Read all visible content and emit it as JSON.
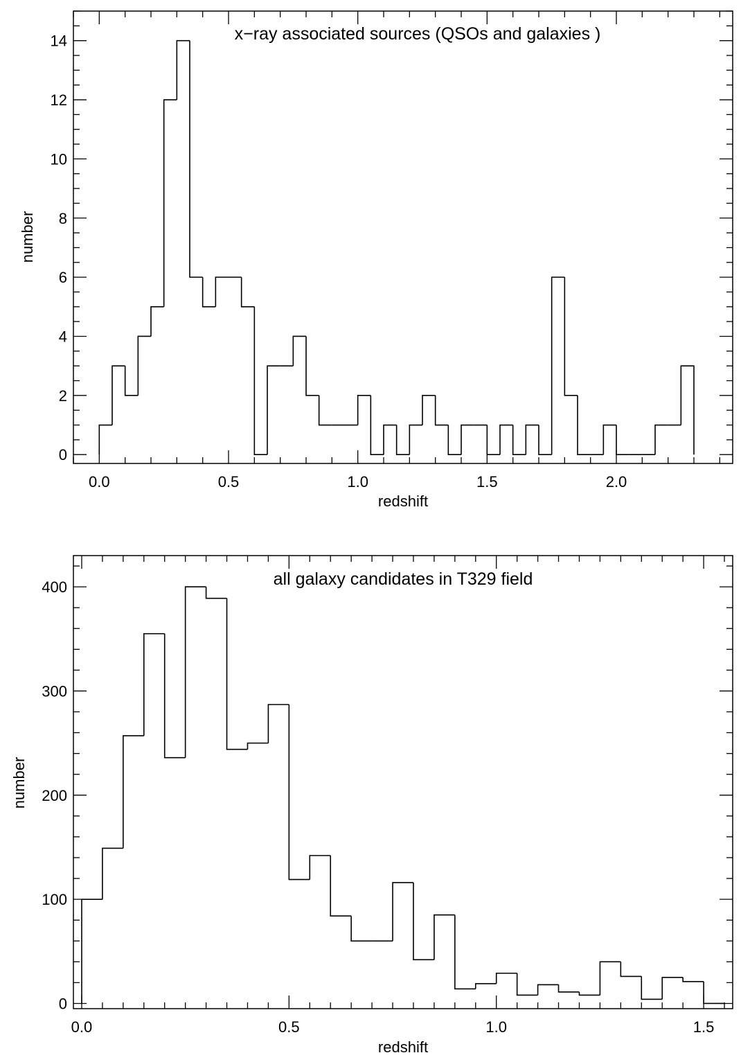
{
  "colors": {
    "ink": "#000000",
    "background": "#ffffff"
  },
  "chart_data": [
    {
      "type": "histogram",
      "title": "x−ray associated sources (QSOs and galaxies )",
      "xlabel": "redshift",
      "ylabel": "number",
      "xlim": [
        -0.1,
        2.45
      ],
      "ylim": [
        -0.3,
        15.0
      ],
      "grid": false,
      "xticks": [
        0.0,
        0.5,
        1.0,
        1.5,
        2.0
      ],
      "xtick_labels": [
        "0.0",
        "0.5",
        "1.0",
        "1.5",
        "2.0"
      ],
      "yticks": [
        0,
        2,
        4,
        6,
        8,
        10,
        12,
        14
      ],
      "ytick_labels": [
        "0",
        "2",
        "4",
        "6",
        "8",
        "10",
        "12",
        "14"
      ],
      "bin_start": 0.0,
      "bin_width": 0.05,
      "values": [
        1,
        3,
        2,
        4,
        5,
        12,
        14,
        6,
        5,
        6,
        6,
        5,
        0,
        3,
        3,
        4,
        2,
        1,
        1,
        1,
        2,
        0,
        1,
        0,
        1,
        2,
        1,
        0,
        1,
        1,
        0,
        1,
        0,
        1,
        0,
        6,
        2,
        0,
        0,
        1,
        0,
        0,
        0,
        1,
        1,
        3
      ]
    },
    {
      "type": "histogram",
      "title": "all galaxy candidates in T329 field",
      "xlabel": "redshift",
      "ylabel": "number",
      "xlim": [
        -0.02,
        1.57
      ],
      "ylim": [
        -5,
        430
      ],
      "grid": false,
      "xticks": [
        0.0,
        0.5,
        1.0,
        1.5
      ],
      "xtick_labels": [
        "0.0",
        "0.5",
        "1.0",
        "1.5"
      ],
      "yticks": [
        0,
        100,
        200,
        300,
        400
      ],
      "ytick_labels": [
        "0",
        "100",
        "200",
        "300",
        "400"
      ],
      "bin_start": 0.0,
      "bin_width": 0.05,
      "values": [
        100,
        149,
        257,
        355,
        236,
        400,
        389,
        244,
        250,
        287,
        119,
        142,
        84,
        60,
        60,
        116,
        42,
        85,
        14,
        19,
        29,
        8,
        18,
        11,
        8,
        40,
        26,
        4,
        25,
        21,
        0
      ]
    }
  ]
}
